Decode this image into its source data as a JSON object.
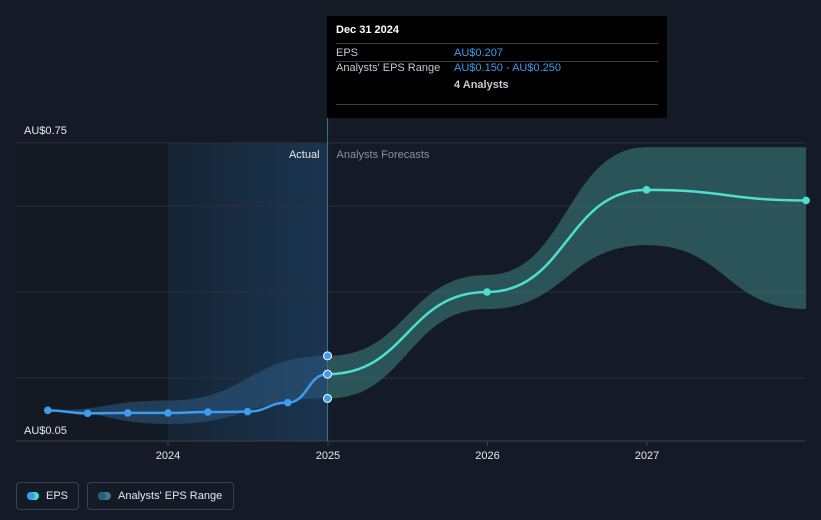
{
  "chart_data": {
    "type": "line",
    "x_axis": {
      "tick_labels": [
        "2024",
        "2025",
        "2026",
        "2027"
      ],
      "range": [
        "2023-04",
        "2027-12-31"
      ]
    },
    "y_axis": {
      "tick_labels": [
        "AU$0.75",
        "AU$0.05"
      ],
      "range": [
        0.05,
        0.75
      ],
      "grid": true
    },
    "actual_label": "Actual",
    "forecast_label": "Analysts Forecasts",
    "series": [
      {
        "name": "EPS",
        "color": "#3b9cf0",
        "forecast_color": "#4ee0cf",
        "points": [
          {
            "x": "2023-04",
            "y": 0.122
          },
          {
            "x": "2023-07",
            "y": 0.115
          },
          {
            "x": "2023-10",
            "y": 0.116
          },
          {
            "x": "2024-01",
            "y": 0.116
          },
          {
            "x": "2024-04",
            "y": 0.118
          },
          {
            "x": "2024-07",
            "y": 0.119
          },
          {
            "x": "2024-10",
            "y": 0.14
          },
          {
            "x": "2024-12-31",
            "y": 0.207
          }
        ],
        "forecast_points": [
          {
            "x": "2024-12-31",
            "y": 0.207
          },
          {
            "x": "2025-12-31",
            "y": 0.4
          },
          {
            "x": "2026-12-31",
            "y": 0.64
          },
          {
            "x": "2027-12-31",
            "y": 0.615
          }
        ]
      },
      {
        "name": "Analysts' EPS Range",
        "color": "#2e5b83",
        "forecast_color": "#3a7c7a",
        "range": [
          {
            "x": "2023-04",
            "low": 0.122,
            "high": 0.122
          },
          {
            "x": "2024-01",
            "low": 0.09,
            "high": 0.145
          },
          {
            "x": "2024-12-31",
            "low": 0.15,
            "high": 0.25
          },
          {
            "x": "2025-12-31",
            "low": 0.36,
            "high": 0.44
          },
          {
            "x": "2026-12-31",
            "low": 0.51,
            "high": 0.74
          },
          {
            "x": "2027-12-31",
            "low": 0.36,
            "high": 0.74
          }
        ]
      }
    ],
    "tooltip": {
      "date": "Dec 31 2024",
      "eps_label": "EPS",
      "eps_value": "AU$0.207",
      "range_label": "Analysts' EPS Range",
      "range_value": "AU$0.150 - AU$0.250",
      "analysts": "4 Analysts"
    }
  },
  "legend": {
    "eps_label": "EPS",
    "range_label": "Analysts' EPS Range"
  }
}
